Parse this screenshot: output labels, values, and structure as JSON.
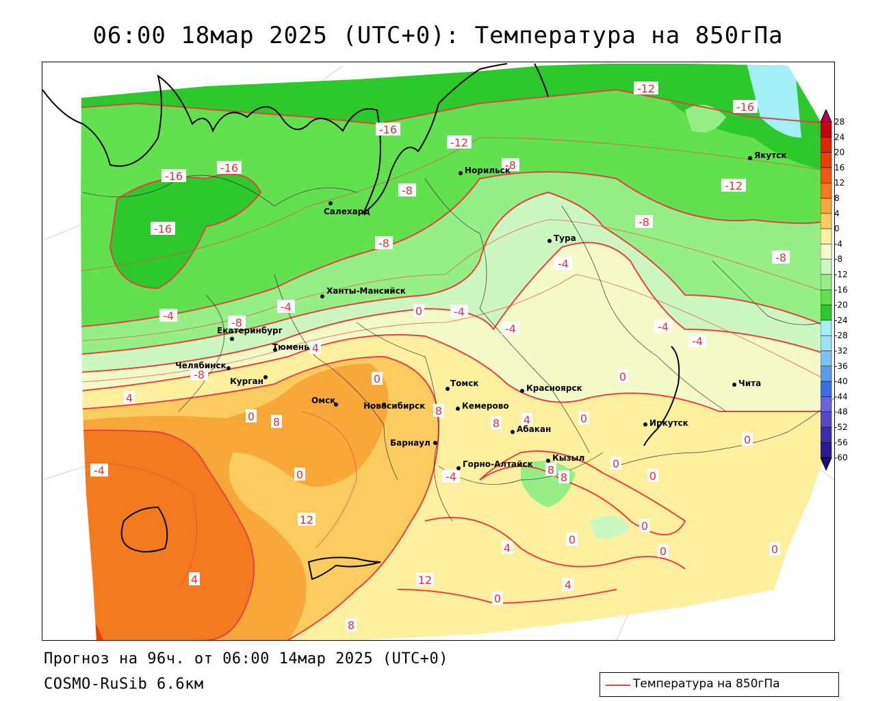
{
  "title": "06:00 18мар 2025 (UTC+0): Температура на 850гПа",
  "footer": {
    "forecast": "Прогноз на 96ч. от 06:00 14мар 2025 (UTC+0)",
    "model": "COSMO-RuSib 6.6км"
  },
  "legend": {
    "label": "Температура на 850гПа",
    "line_color": "#e8403f"
  },
  "colorbar": {
    "ticks": [
      "28",
      "24",
      "20",
      "16",
      "12",
      "8",
      "4",
      "0",
      "-4",
      "-8",
      "-12",
      "-16",
      "-20",
      "-24",
      "-28",
      "-32",
      "-36",
      "-40",
      "-44",
      "-48",
      "-52",
      "-56",
      "-60"
    ],
    "colors": [
      "#b8004a",
      "#c80010",
      "#dc2800",
      "#e84000",
      "#f05a10",
      "#f47a20",
      "#f8a838",
      "#fccc60",
      "#fff0a0",
      "#f4fac8",
      "#ccf7c0",
      "#96ee86",
      "#62e050",
      "#2cc82c",
      "#a4f0f8",
      "#9ce2f4",
      "#7cc4f0",
      "#5a9ce8",
      "#3c6ee0",
      "#6a64d8",
      "#5448c8",
      "#3c2cb0",
      "#2a1a98",
      "#180c80"
    ]
  },
  "cities": [
    {
      "name": "Якутск"
    },
    {
      "name": "Норильск"
    },
    {
      "name": "Салехард"
    },
    {
      "name": "Тура"
    },
    {
      "name": "Ханты-Мансийск"
    },
    {
      "name": "Екатеринбург"
    },
    {
      "name": "Тюмень"
    },
    {
      "name": "Челябинск"
    },
    {
      "name": "Курган"
    },
    {
      "name": "Омск"
    },
    {
      "name": "Новосибирск"
    },
    {
      "name": "Томск"
    },
    {
      "name": "Красноярск"
    },
    {
      "name": "Кемерово"
    },
    {
      "name": "Абакан"
    },
    {
      "name": "Барнаул"
    },
    {
      "name": "Горно-Алтайск"
    },
    {
      "name": "Кызыл"
    },
    {
      "name": "Иркутск"
    },
    {
      "name": "Чита"
    }
  ],
  "contour_labels": [
    "-12",
    "-16",
    "-12",
    "-16",
    "-16",
    "-16",
    "-8",
    "-12",
    "-8",
    "-16",
    "-8",
    "-8",
    "-8",
    "-4",
    "-8",
    "-4",
    "-4",
    "0",
    "-4",
    "-4",
    "-4",
    "-4",
    "-8",
    "4",
    "0",
    "4",
    "0",
    "8",
    "8",
    "8",
    "4",
    "0",
    "0",
    "0",
    "-4",
    "0",
    "12",
    "8",
    "8",
    "-4",
    "4",
    "0",
    "0",
    "0",
    "4",
    "12",
    "4",
    "0",
    "0",
    "8",
    "0",
    "0"
  ]
}
